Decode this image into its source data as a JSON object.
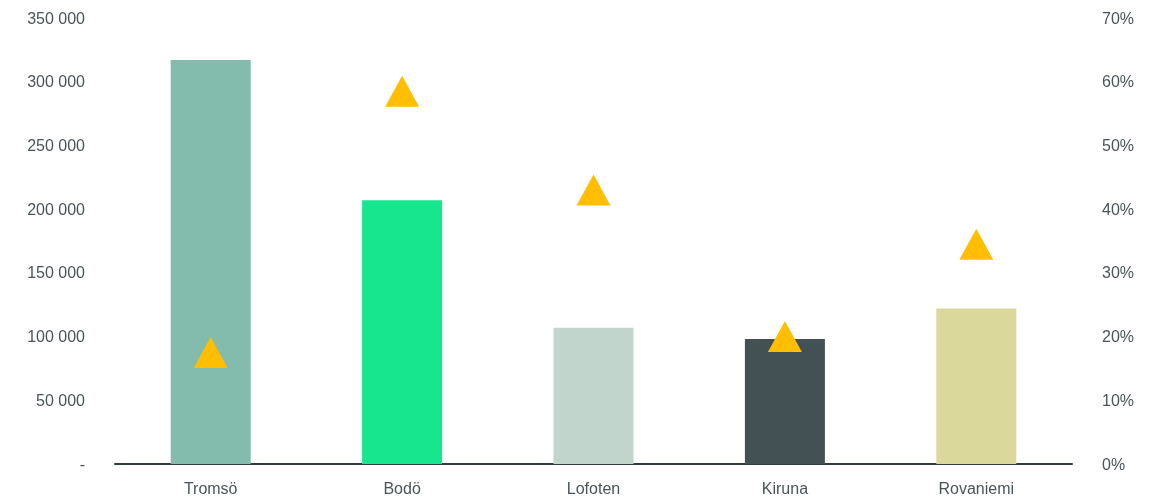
{
  "chart_data": {
    "type": "bar",
    "categories": [
      "Tromsö",
      "Bodö",
      "Lofoten",
      "Kiruna",
      "Rovaniemi"
    ],
    "series": [
      {
        "colors": [
          "#83bbad",
          "#17e68f",
          "#c1d5cc",
          "#435155",
          "#dbd89c"
        ],
        "values": [
          317000,
          207000,
          107000,
          98000,
          122000
        ]
      },
      {
        "type": "scatter",
        "axis": "y2",
        "color": "#ffbf00",
        "marker": "triangle",
        "values": [
          17.5,
          58.5,
          43,
          20,
          34.5
        ]
      }
    ],
    "ylim": [
      0,
      350000
    ],
    "yticks": [
      {
        "value": 0,
        "label": "-"
      },
      {
        "value": 50000,
        "label": "50 000"
      },
      {
        "value": 100000,
        "label": "100 000"
      },
      {
        "value": 150000,
        "label": "150 000"
      },
      {
        "value": 200000,
        "label": "200 000"
      },
      {
        "value": 250000,
        "label": "250 000"
      },
      {
        "value": 300000,
        "label": "300 000"
      },
      {
        "value": 350000,
        "label": "350 000"
      }
    ],
    "y2lim": [
      0,
      70
    ],
    "y2ticks": [
      {
        "value": 0,
        "label": "0%"
      },
      {
        "value": 10,
        "label": "10%"
      },
      {
        "value": 20,
        "label": "20%"
      },
      {
        "value": 30,
        "label": "30%"
      },
      {
        "value": 40,
        "label": "40%"
      },
      {
        "value": 50,
        "label": "50%"
      },
      {
        "value": 60,
        "label": "60%"
      },
      {
        "value": 70,
        "label": "70%"
      }
    ],
    "grid": false
  }
}
